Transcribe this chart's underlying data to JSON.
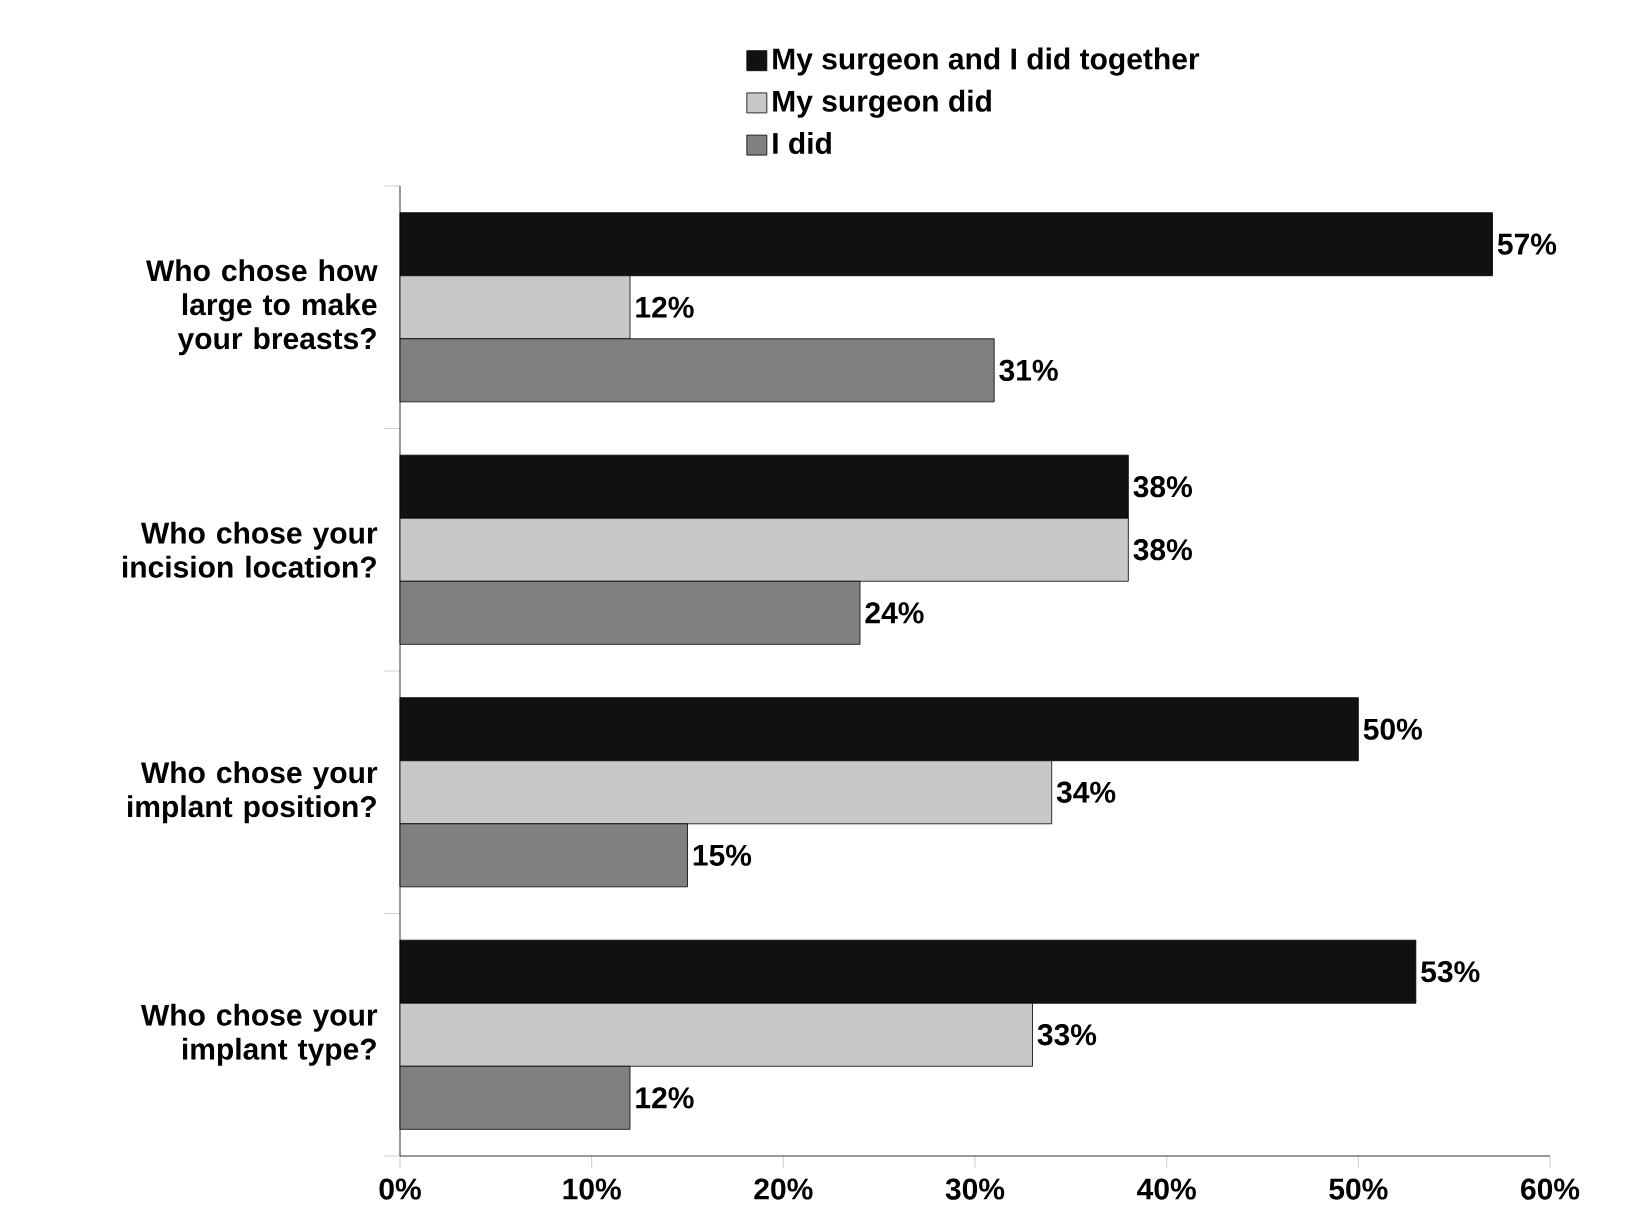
{
  "chart_data": {
    "type": "bar",
    "orientation": "horizontal",
    "categories": [
      "Who chose how large to make your breasts?",
      "Who chose your incision location?",
      "Who chose your implant position?",
      "Who chose your implant type?"
    ],
    "series": [
      {
        "name": "My surgeon and I did together",
        "color": "#111111",
        "values": [
          57,
          38,
          50,
          53
        ],
        "value_labels": [
          "57%",
          "38%",
          "50%",
          "53%"
        ]
      },
      {
        "name": "My surgeon did",
        "color": "#c8c8c8",
        "values": [
          12,
          38,
          34,
          33
        ],
        "value_labels": [
          "12%",
          "38%",
          "34%",
          "33%"
        ]
      },
      {
        "name": "I did",
        "color": "#808080",
        "values": [
          31,
          24,
          15,
          12
        ],
        "value_labels": [
          "31%",
          "24%",
          "15%",
          "12%"
        ]
      }
    ],
    "xlim": [
      0,
      60
    ],
    "xticks": [
      {
        "value": 0,
        "label": "0%"
      },
      {
        "value": 10,
        "label": "10%"
      },
      {
        "value": 20,
        "label": "20%"
      },
      {
        "value": 30,
        "label": "30%"
      },
      {
        "value": 40,
        "label": "40%"
      },
      {
        "value": 50,
        "label": "50%"
      },
      {
        "value": 60,
        "label": "60%"
      }
    ],
    "legend": "top",
    "grid": false
  }
}
